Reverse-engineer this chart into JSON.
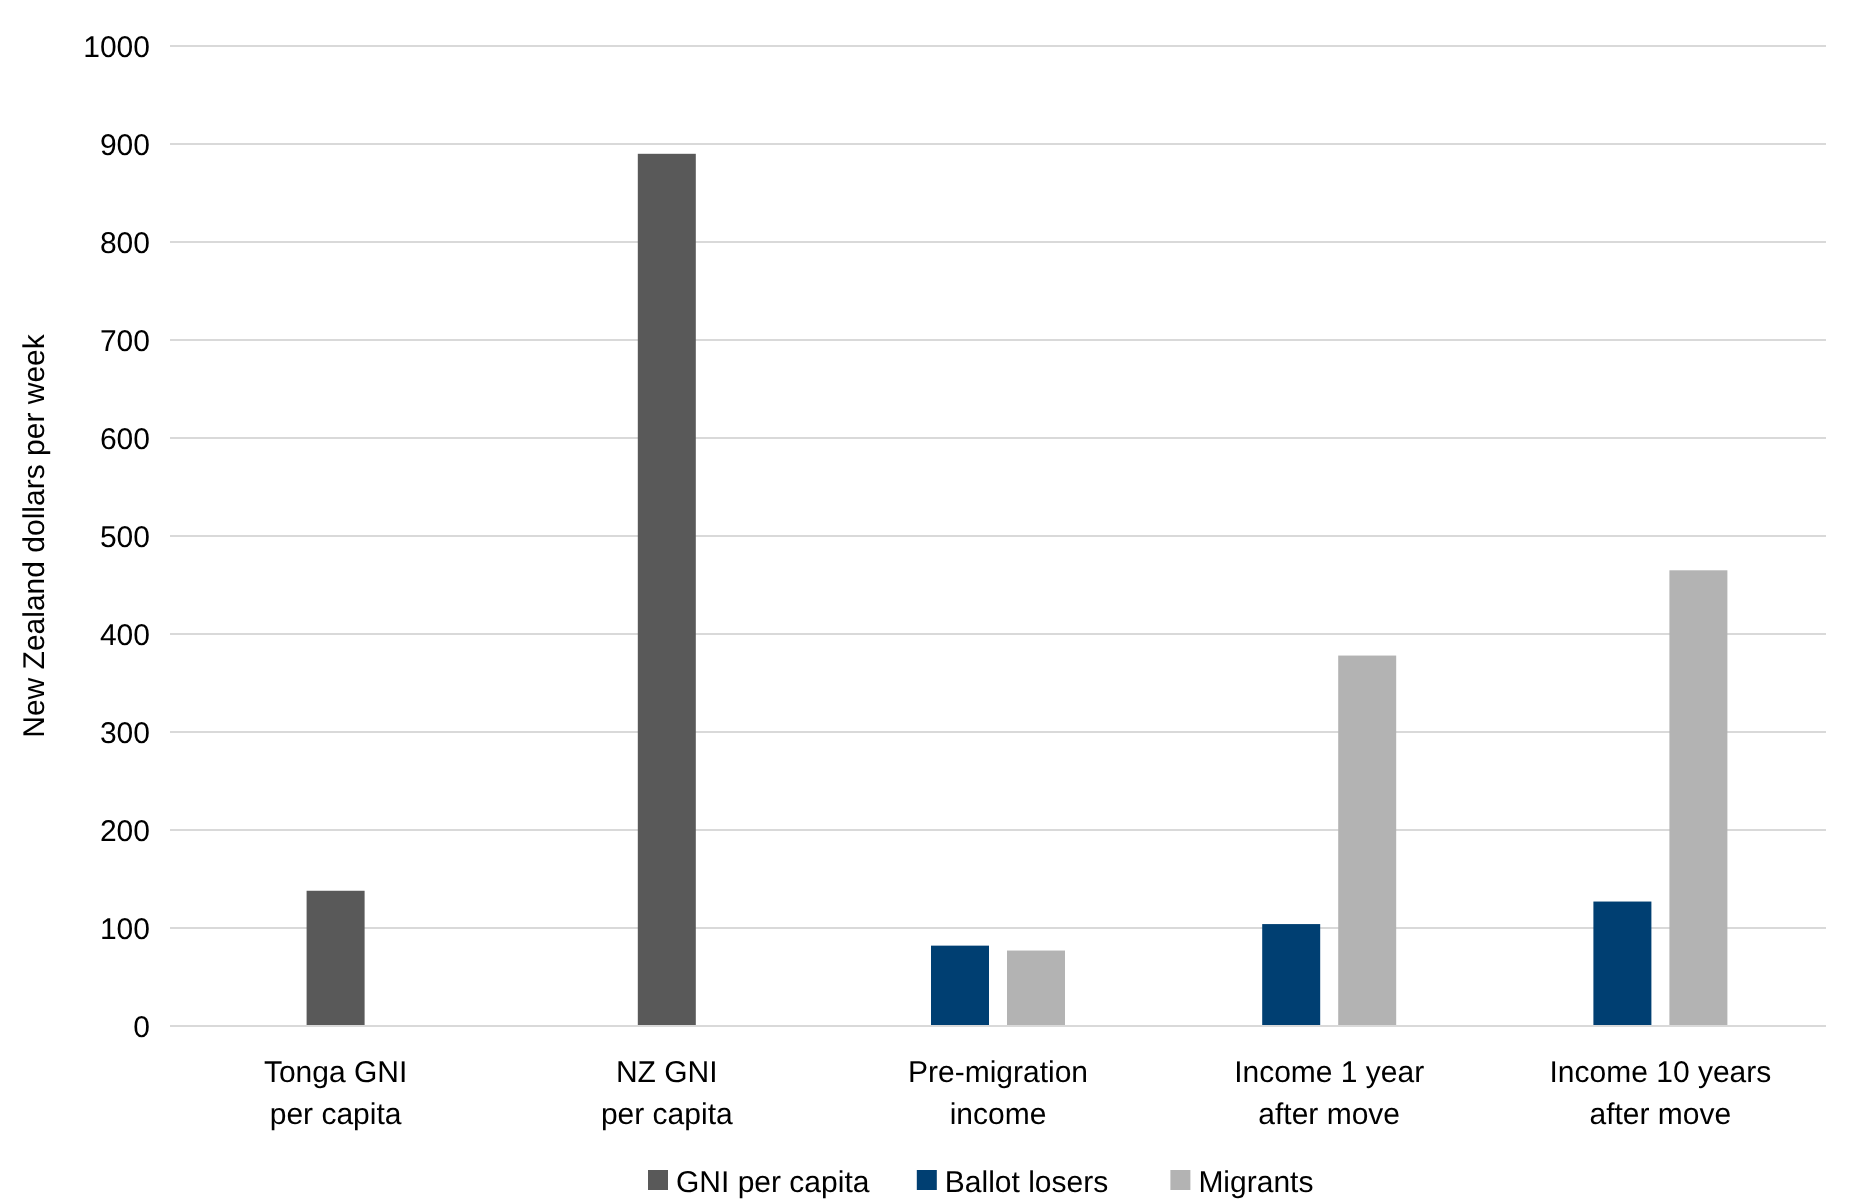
{
  "chart_data": {
    "type": "bar",
    "ylabel": "New Zealand dollars per week",
    "categories": [
      "Tonga GNI\nper capita",
      "NZ GNI\nper capita",
      "Pre-migration\nincome",
      "Income 1 year\nafter move",
      "Income 10 years\nafter move"
    ],
    "series": [
      {
        "name": "GNI per capita",
        "color": "#595959",
        "values": [
          138,
          890,
          null,
          null,
          null
        ]
      },
      {
        "name": "Ballot losers",
        "color": "#003f72",
        "values": [
          null,
          null,
          82,
          104,
          127
        ]
      },
      {
        "name": "Migrants",
        "color": "#b3b3b3",
        "values": [
          null,
          null,
          77,
          378,
          465
        ]
      }
    ],
    "ylim": [
      0,
      1000
    ],
    "yticks": [
      0,
      100,
      200,
      300,
      400,
      500,
      600,
      700,
      800,
      900,
      1000
    ],
    "grid": "y",
    "legend": "bottom"
  }
}
